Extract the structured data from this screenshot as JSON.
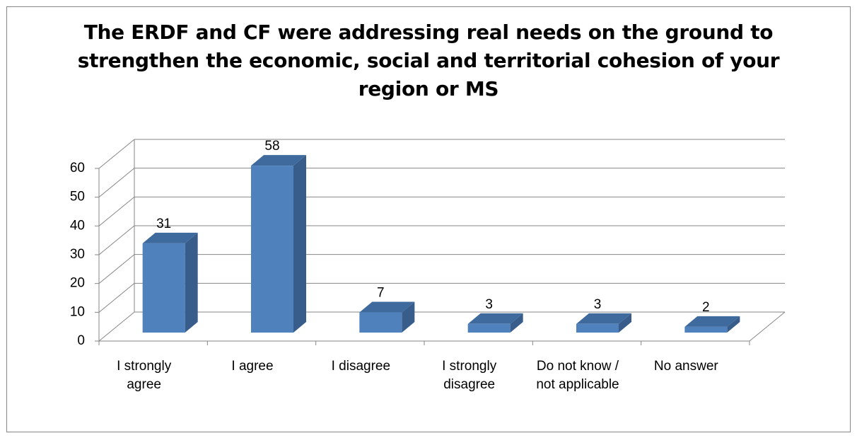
{
  "chart_data": {
    "type": "bar3d",
    "title": "The ERDF and CF were addressing real needs on the ground to strengthen the economic, social and territorial cohesion of your region or MS",
    "categories": [
      "I strongly agree",
      "I agree",
      "I disagree",
      "I strongly disagree",
      "Do not know / not applicable",
      "No answer"
    ],
    "values": [
      31,
      58,
      7,
      3,
      3,
      2
    ],
    "color": "#4f81bd",
    "ylim": [
      0,
      60
    ],
    "yticks": [
      0,
      10,
      20,
      30,
      40,
      50,
      60
    ],
    "grid": true
  }
}
